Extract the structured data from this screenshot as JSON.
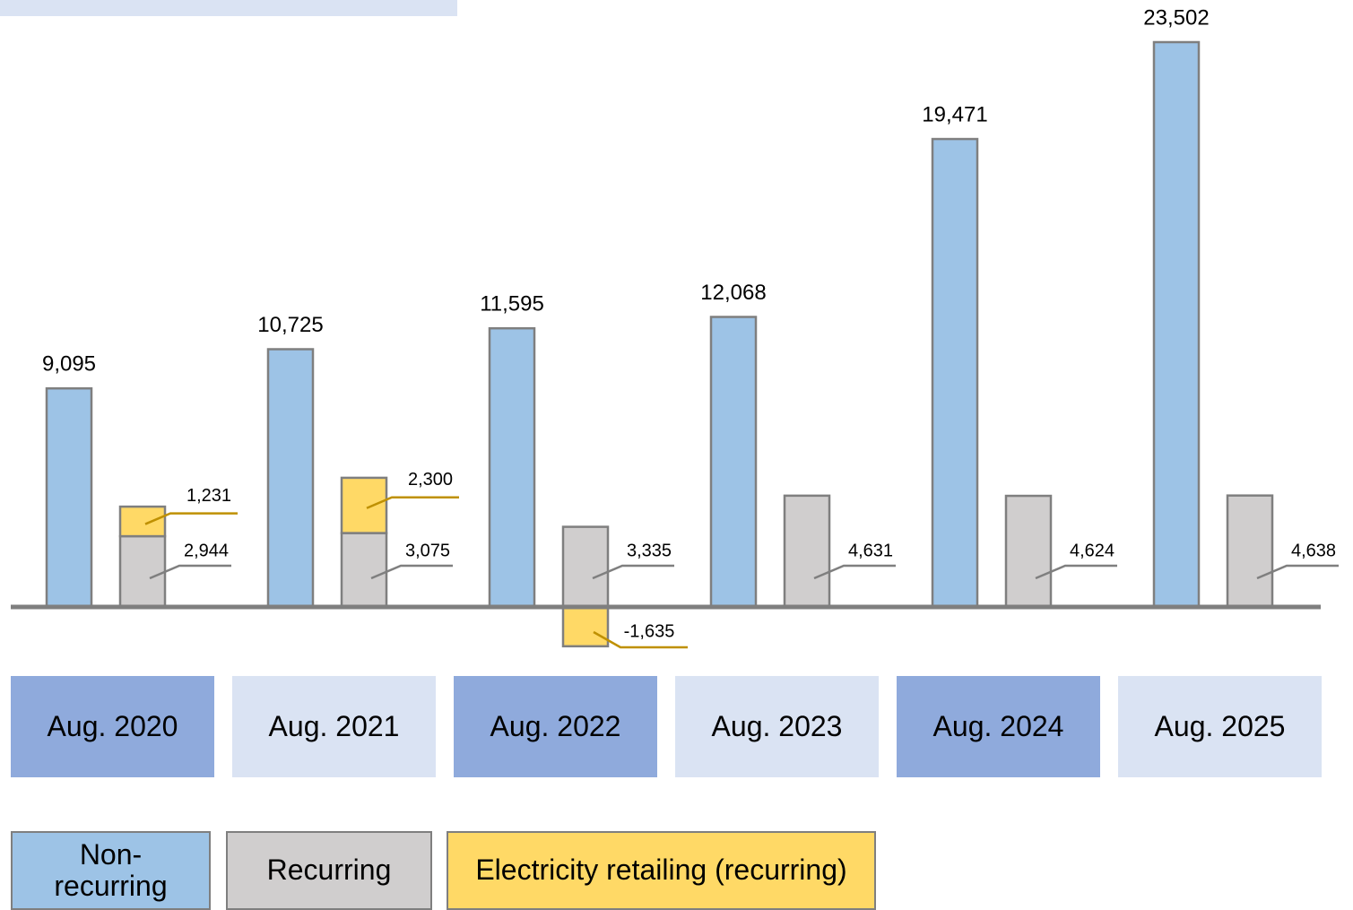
{
  "chart_data": {
    "type": "bar",
    "categories": [
      "Aug. 2020",
      "Aug. 2021",
      "Aug. 2022",
      "Aug. 2023",
      "Aug. 2024",
      "Aug. 2025"
    ],
    "series": [
      {
        "name": "Non-recurring",
        "color": "#9dc3e6",
        "values": [
          9095,
          10725,
          11595,
          12068,
          19471,
          23502
        ],
        "value_labels": [
          "9,095",
          "10,725",
          "11,595",
          "12,068",
          "19,471",
          "23,502"
        ]
      },
      {
        "name": "Recurring",
        "color": "#d0cece",
        "values": [
          2944,
          3075,
          3335,
          4631,
          4624,
          4638
        ],
        "value_labels": [
          "2,944",
          "3,075",
          "3,335",
          "4,631",
          "4,624",
          "4,638"
        ]
      },
      {
        "name": "Electricity retailing (recurring)",
        "color": "#ffd966",
        "values": [
          1231,
          2300,
          -1635,
          null,
          null,
          null
        ],
        "value_labels": [
          "1,231",
          "2,300",
          "-1,635",
          null,
          null,
          null
        ]
      }
    ]
  }
}
